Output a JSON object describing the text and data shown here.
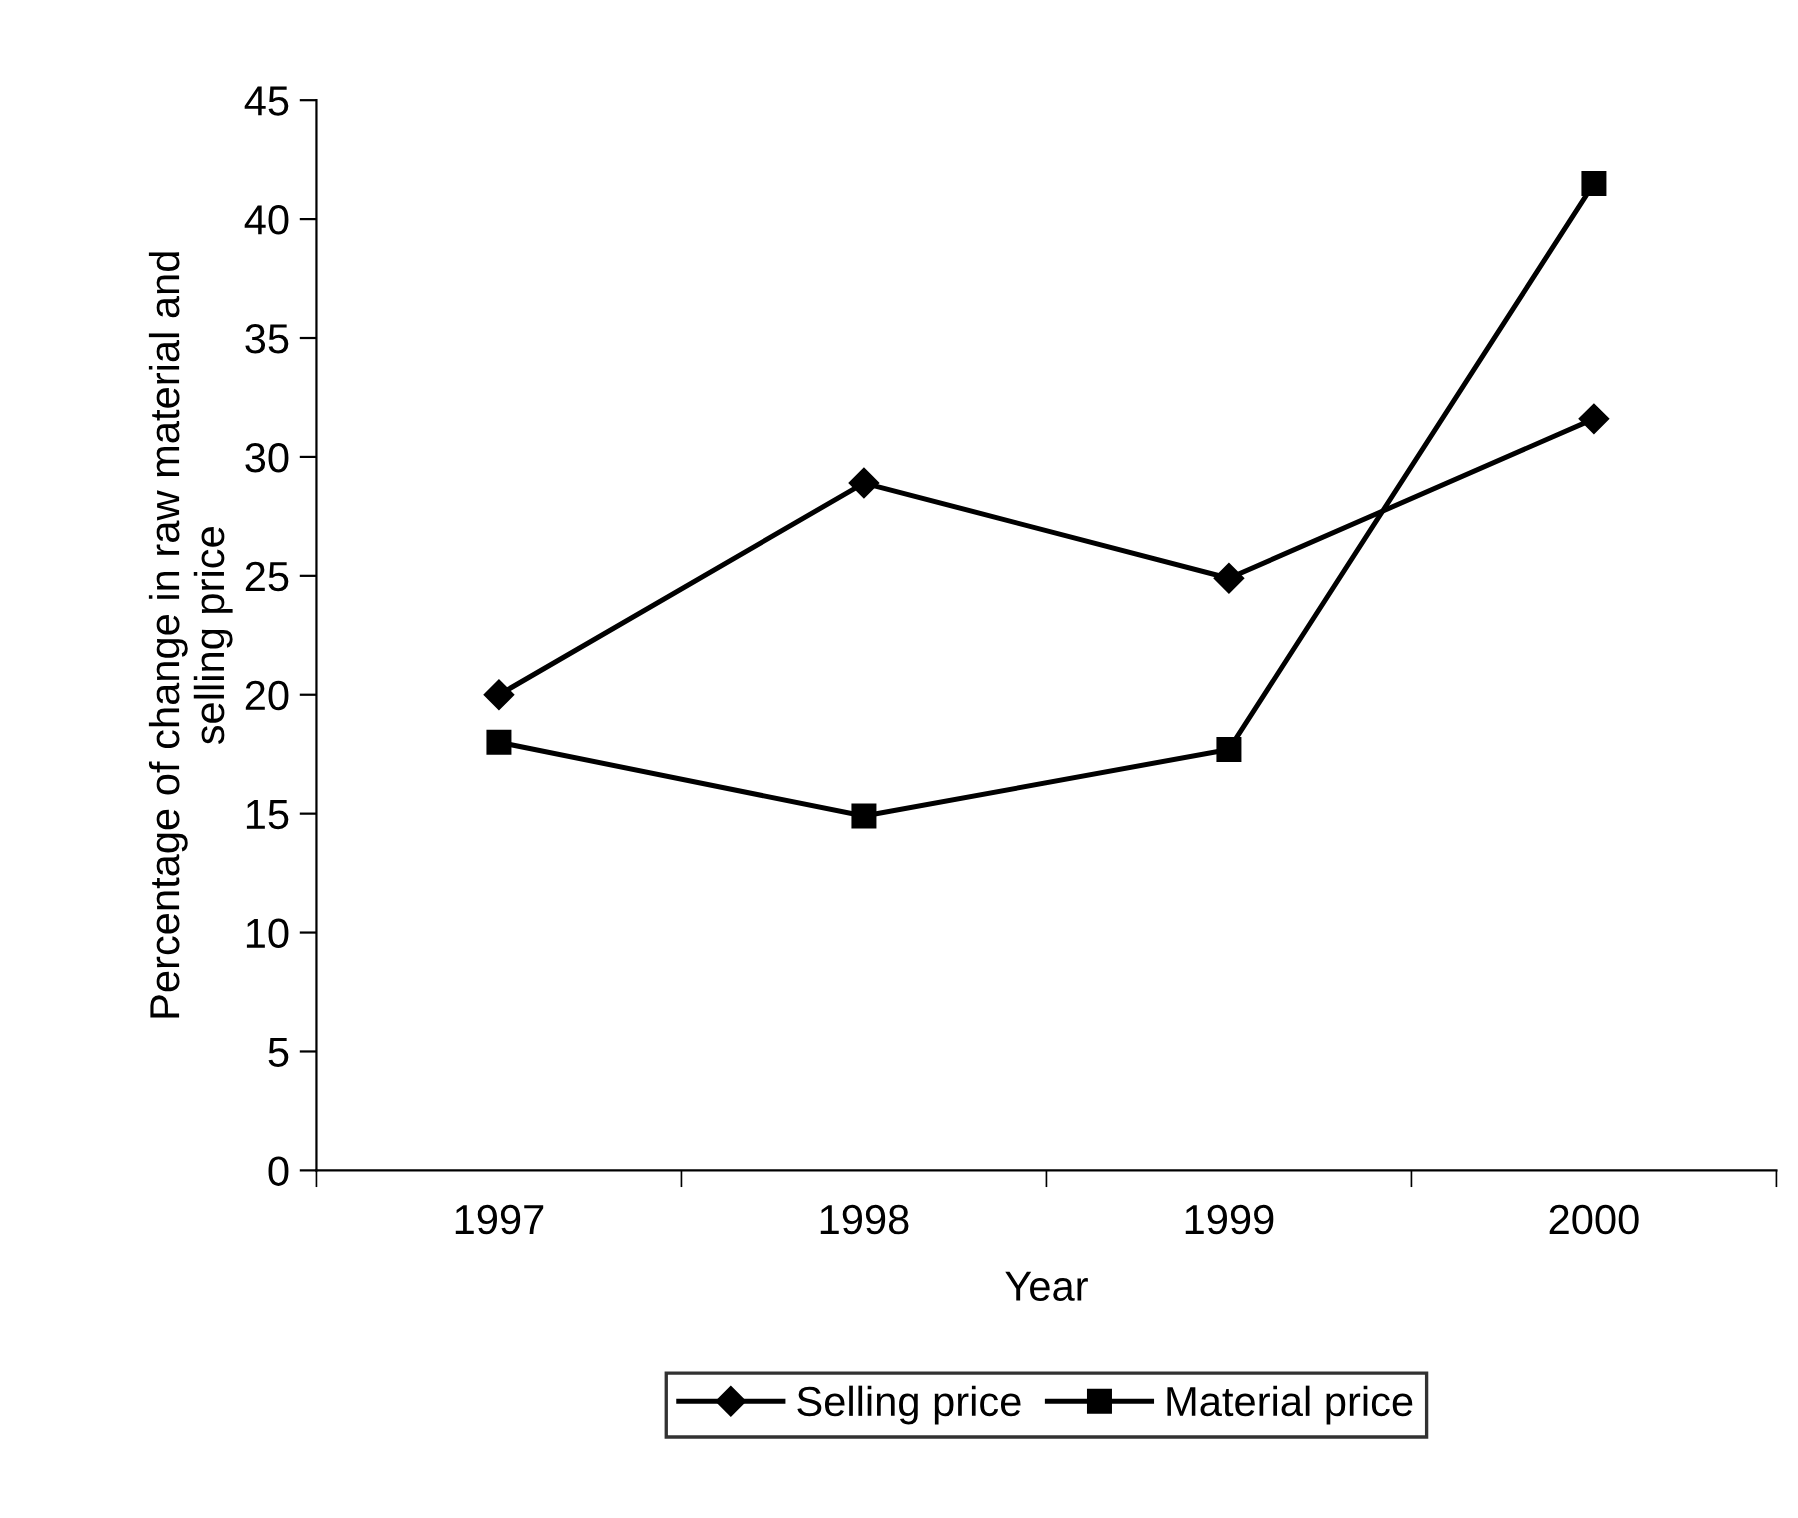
{
  "chart_data": {
    "type": "line",
    "xlabel": "Year",
    "ylabel": "Percentage of change in raw material and\nselling price",
    "categories": [
      "1997",
      "1998",
      "1999",
      "2000"
    ],
    "series": [
      {
        "name": "Selling price",
        "color": "#000000",
        "marker": "diamond",
        "values": [
          20,
          28.9,
          24.9,
          31.6
        ]
      },
      {
        "name": "Material price",
        "color": "#000000",
        "marker": "square",
        "values": [
          18,
          14.9,
          17.7,
          41.5
        ]
      }
    ],
    "ylim": [
      0,
      45
    ],
    "yticks": [
      0,
      5,
      10,
      15,
      20,
      25,
      30,
      35,
      40,
      45
    ],
    "grid": false,
    "legend": "bottom",
    "line_style": "solid"
  }
}
